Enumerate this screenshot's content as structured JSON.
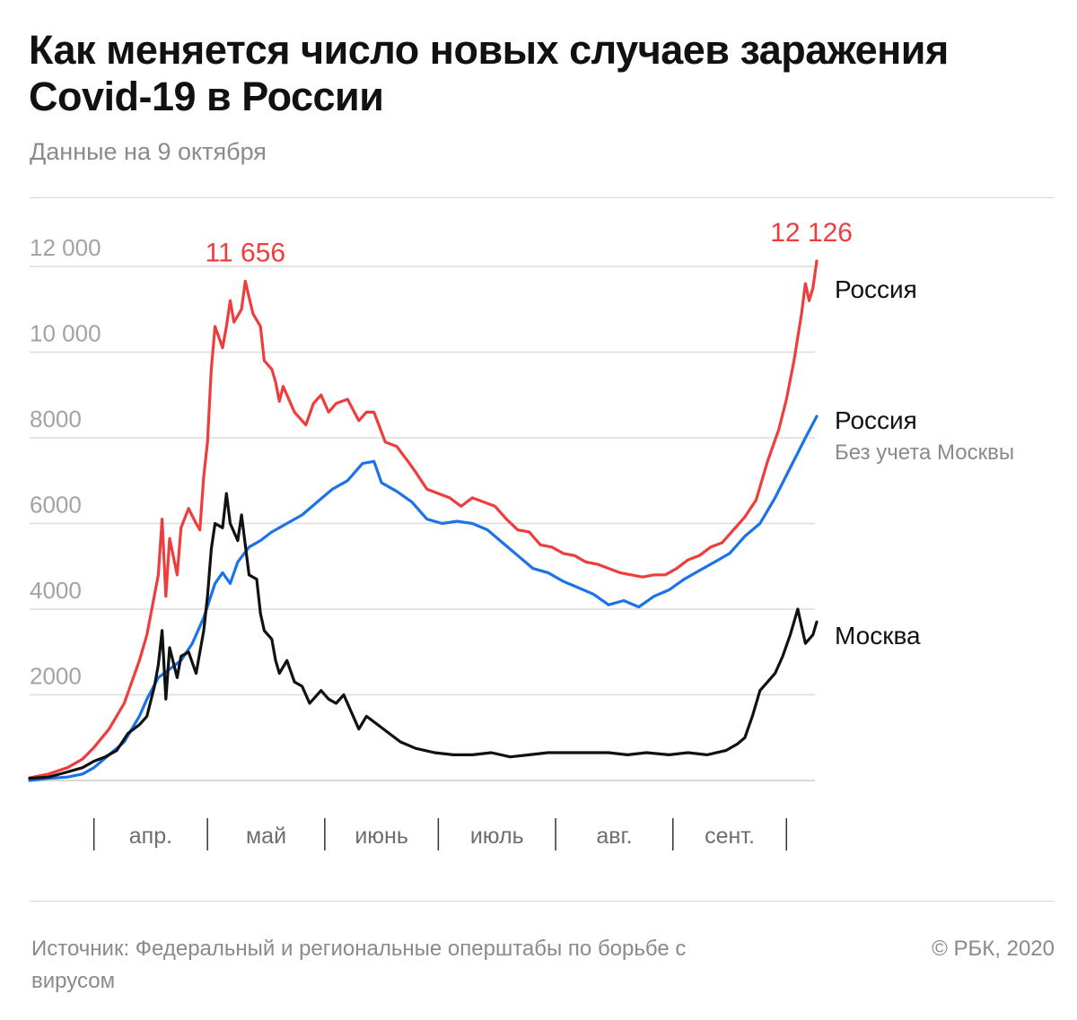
{
  "header": {
    "title": "Как меняется число новых случаев заражения Covid-19 в России",
    "subtitle": "Данные на 9 октября"
  },
  "footer": {
    "source": "Источник: Федеральный и региональные оперштабы по борьбе с вирусом",
    "copyright": "© РБК, 2020"
  },
  "chart_data": {
    "type": "line",
    "title": "Как меняется число новых случаев заражения Covid-19 в России",
    "subtitle": "Данные на 9 октября",
    "x_start_date": "2020-03-15",
    "x_end_date": "2020-10-09",
    "y_ticks": [
      2000,
      4000,
      6000,
      8000,
      10000,
      12000
    ],
    "y_tick_labels": [
      "2000",
      "4000",
      "6000",
      "8000",
      "10 000",
      "12 000"
    ],
    "ylim": [
      0,
      12500
    ],
    "grid": true,
    "month_labels": [
      {
        "label": "апр.",
        "start": "2020-04-01",
        "end": "2020-05-01"
      },
      {
        "label": "май",
        "start": "2020-05-01",
        "end": "2020-06-01"
      },
      {
        "label": "июнь",
        "start": "2020-06-01",
        "end": "2020-07-01"
      },
      {
        "label": "июль",
        "start": "2020-07-01",
        "end": "2020-08-01"
      },
      {
        "label": "авг.",
        "start": "2020-08-01",
        "end": "2020-09-01"
      },
      {
        "label": "сент.",
        "start": "2020-09-01",
        "end": "2020-10-01"
      }
    ],
    "series": [
      {
        "name": "Россия",
        "sublabel": "",
        "color": "#ef3d3d",
        "points": [
          [
            "2020-03-15",
            60
          ],
          [
            "2020-03-20",
            150
          ],
          [
            "2020-03-25",
            300
          ],
          [
            "2020-03-29",
            500
          ],
          [
            "2020-04-01",
            770
          ],
          [
            "2020-04-05",
            1200
          ],
          [
            "2020-04-09",
            1800
          ],
          [
            "2020-04-13",
            2800
          ],
          [
            "2020-04-15",
            3400
          ],
          [
            "2020-04-18",
            4800
          ],
          [
            "2020-04-19",
            6100
          ],
          [
            "2020-04-20",
            4300
          ],
          [
            "2020-04-21",
            5650
          ],
          [
            "2020-04-23",
            4800
          ],
          [
            "2020-04-24",
            5900
          ],
          [
            "2020-04-26",
            6350
          ],
          [
            "2020-04-28",
            6000
          ],
          [
            "2020-04-29",
            5850
          ],
          [
            "2020-04-30",
            7100
          ],
          [
            "2020-05-01",
            7900
          ],
          [
            "2020-05-02",
            9600
          ],
          [
            "2020-05-03",
            10600
          ],
          [
            "2020-05-05",
            10100
          ],
          [
            "2020-05-06",
            10600
          ],
          [
            "2020-05-07",
            11200
          ],
          [
            "2020-05-08",
            10700
          ],
          [
            "2020-05-10",
            11000
          ],
          [
            "2020-05-11",
            11656
          ],
          [
            "2020-05-13",
            10900
          ],
          [
            "2020-05-15",
            10600
          ],
          [
            "2020-05-16",
            9800
          ],
          [
            "2020-05-18",
            9600
          ],
          [
            "2020-05-19",
            9300
          ],
          [
            "2020-05-20",
            8850
          ],
          [
            "2020-05-21",
            9200
          ],
          [
            "2020-05-24",
            8600
          ],
          [
            "2020-05-27",
            8300
          ],
          [
            "2020-05-29",
            8800
          ],
          [
            "2020-05-31",
            9000
          ],
          [
            "2020-06-02",
            8600
          ],
          [
            "2020-06-04",
            8800
          ],
          [
            "2020-06-07",
            8900
          ],
          [
            "2020-06-10",
            8400
          ],
          [
            "2020-06-12",
            8600
          ],
          [
            "2020-06-14",
            8600
          ],
          [
            "2020-06-17",
            7900
          ],
          [
            "2020-06-20",
            7800
          ],
          [
            "2020-06-23",
            7450
          ],
          [
            "2020-06-25",
            7200
          ],
          [
            "2020-06-28",
            6800
          ],
          [
            "2020-07-01",
            6700
          ],
          [
            "2020-07-04",
            6600
          ],
          [
            "2020-07-07",
            6400
          ],
          [
            "2020-07-10",
            6600
          ],
          [
            "2020-07-13",
            6500
          ],
          [
            "2020-07-16",
            6400
          ],
          [
            "2020-07-19",
            6100
          ],
          [
            "2020-07-22",
            5850
          ],
          [
            "2020-07-25",
            5800
          ],
          [
            "2020-07-28",
            5500
          ],
          [
            "2020-07-31",
            5450
          ],
          [
            "2020-08-03",
            5300
          ],
          [
            "2020-08-06",
            5250
          ],
          [
            "2020-08-09",
            5100
          ],
          [
            "2020-08-12",
            5050
          ],
          [
            "2020-08-15",
            4950
          ],
          [
            "2020-08-18",
            4850
          ],
          [
            "2020-08-21",
            4800
          ],
          [
            "2020-08-24",
            4750
          ],
          [
            "2020-08-27",
            4800
          ],
          [
            "2020-08-30",
            4800
          ],
          [
            "2020-09-02",
            4950
          ],
          [
            "2020-09-05",
            5150
          ],
          [
            "2020-09-08",
            5250
          ],
          [
            "2020-09-11",
            5450
          ],
          [
            "2020-09-14",
            5550
          ],
          [
            "2020-09-17",
            5850
          ],
          [
            "2020-09-20",
            6150
          ],
          [
            "2020-09-23",
            6550
          ],
          [
            "2020-09-26",
            7450
          ],
          [
            "2020-09-29",
            8200
          ],
          [
            "2020-10-01",
            8900
          ],
          [
            "2020-10-03",
            9800
          ],
          [
            "2020-10-05",
            10900
          ],
          [
            "2020-10-06",
            11600
          ],
          [
            "2020-10-07",
            11200
          ],
          [
            "2020-10-08",
            11500
          ],
          [
            "2020-10-09",
            12126
          ]
        ]
      },
      {
        "name": "Россия",
        "sublabel": "Без учета Москвы",
        "color": "#1a73e8",
        "points": [
          [
            "2020-03-15",
            0
          ],
          [
            "2020-03-20",
            50
          ],
          [
            "2020-03-25",
            80
          ],
          [
            "2020-03-29",
            150
          ],
          [
            "2020-04-01",
            300
          ],
          [
            "2020-04-05",
            600
          ],
          [
            "2020-04-09",
            900
          ],
          [
            "2020-04-13",
            1500
          ],
          [
            "2020-04-15",
            1900
          ],
          [
            "2020-04-18",
            2400
          ],
          [
            "2020-04-21",
            2600
          ],
          [
            "2020-04-24",
            2800
          ],
          [
            "2020-04-27",
            3200
          ],
          [
            "2020-04-30",
            3800
          ],
          [
            "2020-05-03",
            4600
          ],
          [
            "2020-05-05",
            4850
          ],
          [
            "2020-05-07",
            4600
          ],
          [
            "2020-05-09",
            5100
          ],
          [
            "2020-05-12",
            5450
          ],
          [
            "2020-05-15",
            5600
          ],
          [
            "2020-05-18",
            5800
          ],
          [
            "2020-05-22",
            6000
          ],
          [
            "2020-05-26",
            6200
          ],
          [
            "2020-05-30",
            6500
          ],
          [
            "2020-06-03",
            6800
          ],
          [
            "2020-06-07",
            7000
          ],
          [
            "2020-06-11",
            7400
          ],
          [
            "2020-06-14",
            7450
          ],
          [
            "2020-06-16",
            6950
          ],
          [
            "2020-06-20",
            6750
          ],
          [
            "2020-06-24",
            6500
          ],
          [
            "2020-06-28",
            6100
          ],
          [
            "2020-07-02",
            6000
          ],
          [
            "2020-07-06",
            6050
          ],
          [
            "2020-07-10",
            6000
          ],
          [
            "2020-07-14",
            5850
          ],
          [
            "2020-07-18",
            5550
          ],
          [
            "2020-07-22",
            5250
          ],
          [
            "2020-07-26",
            4950
          ],
          [
            "2020-07-30",
            4850
          ],
          [
            "2020-08-03",
            4650
          ],
          [
            "2020-08-07",
            4500
          ],
          [
            "2020-08-11",
            4350
          ],
          [
            "2020-08-15",
            4100
          ],
          [
            "2020-08-19",
            4200
          ],
          [
            "2020-08-23",
            4050
          ],
          [
            "2020-08-27",
            4300
          ],
          [
            "2020-08-31",
            4450
          ],
          [
            "2020-09-04",
            4700
          ],
          [
            "2020-09-08",
            4900
          ],
          [
            "2020-09-12",
            5100
          ],
          [
            "2020-09-16",
            5300
          ],
          [
            "2020-09-20",
            5700
          ],
          [
            "2020-09-24",
            6000
          ],
          [
            "2020-09-28",
            6600
          ],
          [
            "2020-10-02",
            7300
          ],
          [
            "2020-10-06",
            8000
          ],
          [
            "2020-10-09",
            8500
          ]
        ]
      },
      {
        "name": "Москва",
        "sublabel": "",
        "color": "#111111",
        "points": [
          [
            "2020-03-15",
            50
          ],
          [
            "2020-03-20",
            80
          ],
          [
            "2020-03-25",
            200
          ],
          [
            "2020-03-29",
            300
          ],
          [
            "2020-04-01",
            450
          ],
          [
            "2020-04-04",
            550
          ],
          [
            "2020-04-07",
            700
          ],
          [
            "2020-04-10",
            1100
          ],
          [
            "2020-04-13",
            1300
          ],
          [
            "2020-04-15",
            1500
          ],
          [
            "2020-04-17",
            2200
          ],
          [
            "2020-04-18",
            2700
          ],
          [
            "2020-04-19",
            3500
          ],
          [
            "2020-04-20",
            1900
          ],
          [
            "2020-04-21",
            3100
          ],
          [
            "2020-04-23",
            2400
          ],
          [
            "2020-04-24",
            2900
          ],
          [
            "2020-04-26",
            3000
          ],
          [
            "2020-04-28",
            2500
          ],
          [
            "2020-04-30",
            3500
          ],
          [
            "2020-05-01",
            4300
          ],
          [
            "2020-05-02",
            5400
          ],
          [
            "2020-05-03",
            6000
          ],
          [
            "2020-05-05",
            5900
          ],
          [
            "2020-05-06",
            6700
          ],
          [
            "2020-05-07",
            6000
          ],
          [
            "2020-05-09",
            5600
          ],
          [
            "2020-05-10",
            6200
          ],
          [
            "2020-05-12",
            4800
          ],
          [
            "2020-05-14",
            4700
          ],
          [
            "2020-05-15",
            3900
          ],
          [
            "2020-05-16",
            3500
          ],
          [
            "2020-05-18",
            3300
          ],
          [
            "2020-05-19",
            2800
          ],
          [
            "2020-05-20",
            2500
          ],
          [
            "2020-05-22",
            2800
          ],
          [
            "2020-05-24",
            2300
          ],
          [
            "2020-05-26",
            2200
          ],
          [
            "2020-05-28",
            1800
          ],
          [
            "2020-05-31",
            2100
          ],
          [
            "2020-06-02",
            1900
          ],
          [
            "2020-06-04",
            1800
          ],
          [
            "2020-06-06",
            2000
          ],
          [
            "2020-06-08",
            1600
          ],
          [
            "2020-06-10",
            1200
          ],
          [
            "2020-06-12",
            1500
          ],
          [
            "2020-06-15",
            1300
          ],
          [
            "2020-06-18",
            1100
          ],
          [
            "2020-06-21",
            900
          ],
          [
            "2020-06-25",
            750
          ],
          [
            "2020-06-30",
            650
          ],
          [
            "2020-07-05",
            600
          ],
          [
            "2020-07-10",
            600
          ],
          [
            "2020-07-15",
            650
          ],
          [
            "2020-07-20",
            550
          ],
          [
            "2020-07-25",
            600
          ],
          [
            "2020-07-30",
            650
          ],
          [
            "2020-08-05",
            650
          ],
          [
            "2020-08-10",
            650
          ],
          [
            "2020-08-15",
            650
          ],
          [
            "2020-08-20",
            600
          ],
          [
            "2020-08-25",
            650
          ],
          [
            "2020-08-31",
            600
          ],
          [
            "2020-09-05",
            650
          ],
          [
            "2020-09-10",
            600
          ],
          [
            "2020-09-15",
            700
          ],
          [
            "2020-09-18",
            850
          ],
          [
            "2020-09-20",
            1000
          ],
          [
            "2020-09-22",
            1500
          ],
          [
            "2020-09-24",
            2100
          ],
          [
            "2020-09-26",
            2300
          ],
          [
            "2020-09-28",
            2500
          ],
          [
            "2020-09-30",
            2900
          ],
          [
            "2020-10-02",
            3400
          ],
          [
            "2020-10-04",
            4000
          ],
          [
            "2020-10-05",
            3600
          ],
          [
            "2020-10-06",
            3200
          ],
          [
            "2020-10-08",
            3400
          ],
          [
            "2020-10-09",
            3700
          ]
        ]
      }
    ],
    "annotations": [
      {
        "text": "11 656",
        "date": "2020-05-11",
        "value": 11656
      },
      {
        "text": "12 126",
        "date": "2020-10-09",
        "value": 12126
      }
    ]
  }
}
